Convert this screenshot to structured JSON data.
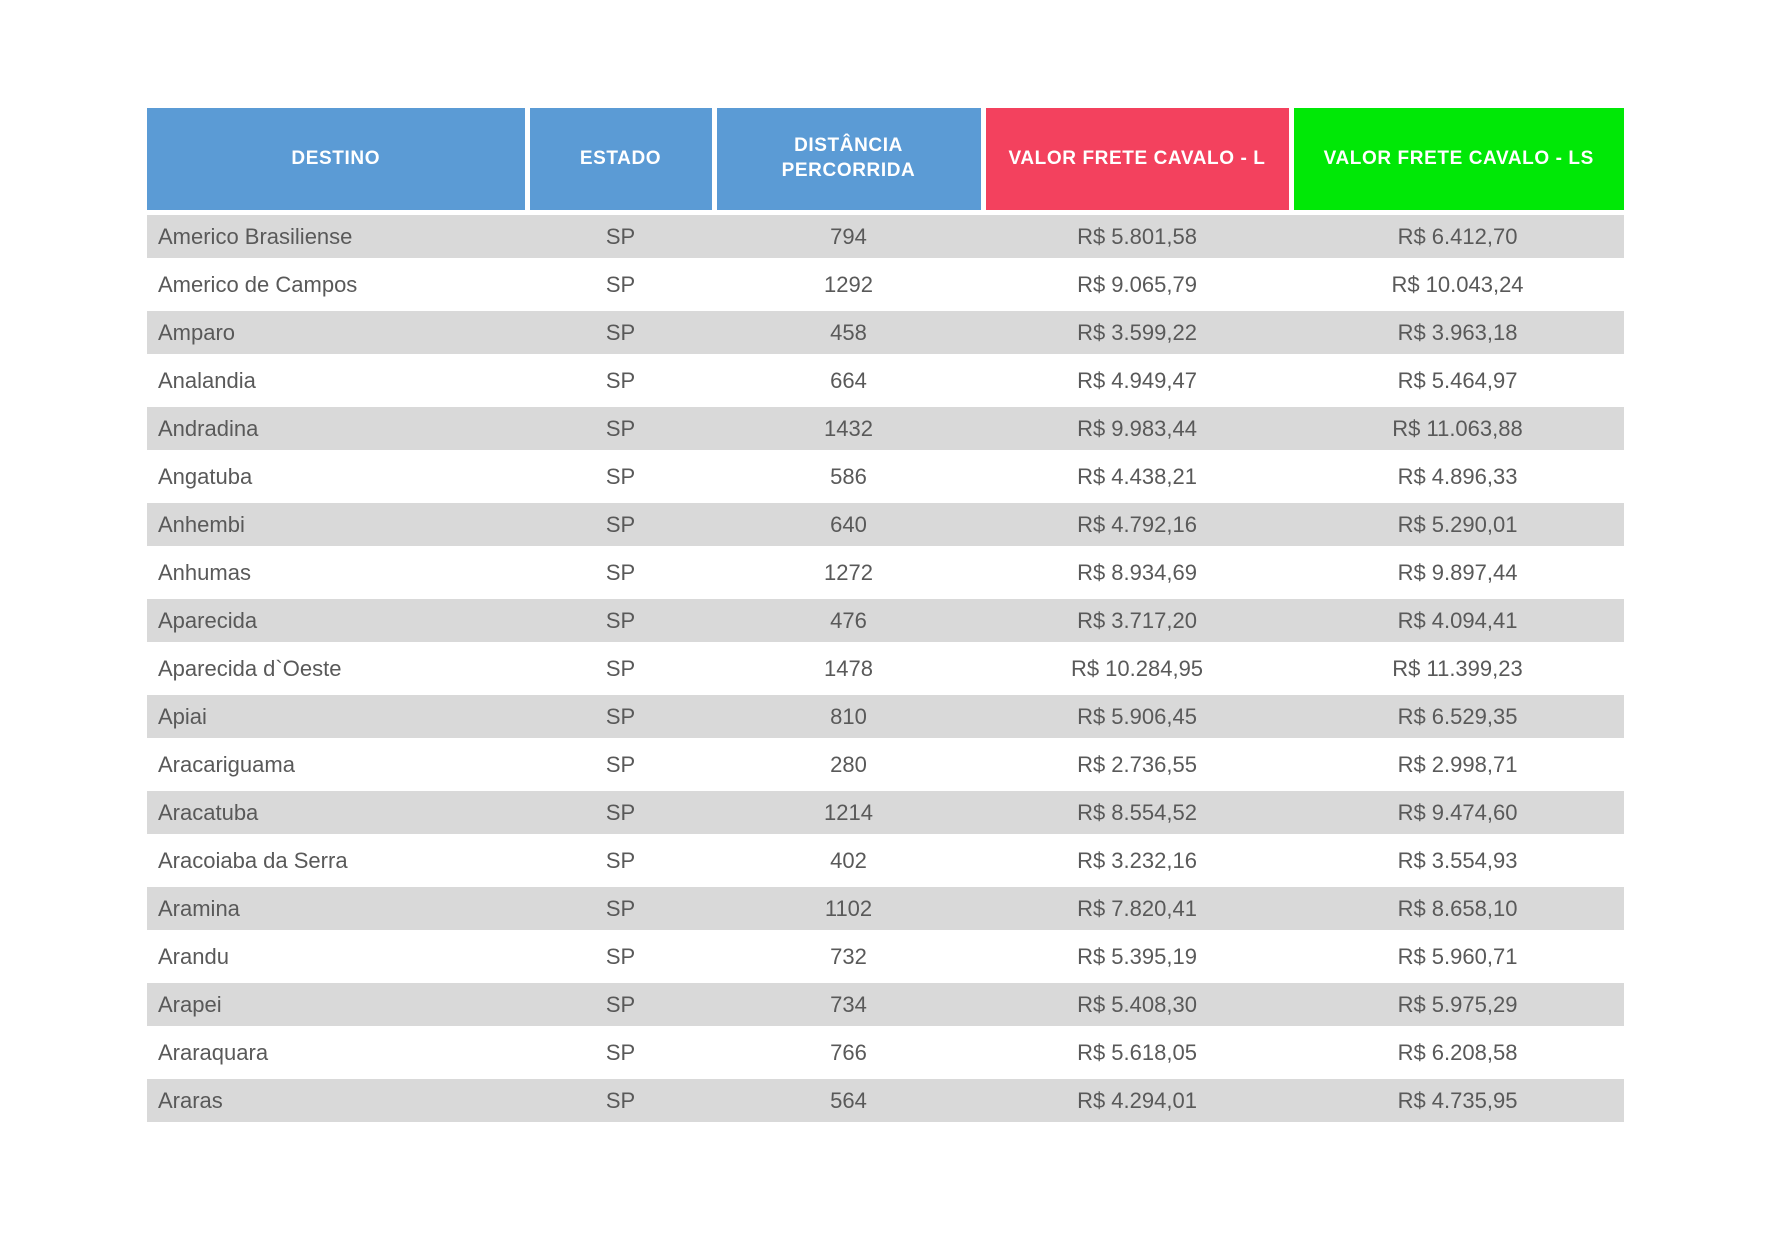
{
  "page": {
    "background": "#FFFFFF"
  },
  "colors": {
    "header_blue": "#5B9BD5",
    "header_red": "#F3415E",
    "header_green": "#00E806",
    "row_stripe_gray": "#D9D9D9",
    "row_white": "#FFFFFF",
    "body_text": "#595959",
    "header_text": "#FFFFFF"
  },
  "chart_data": {
    "type": "table",
    "title": "",
    "columns": [
      {
        "key": "destino",
        "label": "DESTINO",
        "color": "#5B9BD5"
      },
      {
        "key": "estado",
        "label": "ESTADO",
        "color": "#5B9BD5"
      },
      {
        "key": "distancia-percorrida",
        "label": "DISTÂNCIA PERCORRIDA",
        "color": "#5B9BD5"
      },
      {
        "key": "valor-frete-cavalo-l",
        "label": "VALOR FRETE CAVALO - L",
        "color": "#F3415E"
      },
      {
        "key": "valor-frete-cavalo-ls",
        "label": "VALOR FRETE CAVALO - LS",
        "color": "#00E806"
      }
    ],
    "rows": [
      [
        "Americo Brasiliense",
        "SP",
        794,
        "R$ 5.801,58",
        "R$ 6.412,70"
      ],
      [
        "Americo de Campos",
        "SP",
        1292,
        "R$ 9.065,79",
        "R$ 10.043,24"
      ],
      [
        "Amparo",
        "SP",
        458,
        "R$ 3.599,22",
        "R$ 3.963,18"
      ],
      [
        "Analandia",
        "SP",
        664,
        "R$ 4.949,47",
        "R$ 5.464,97"
      ],
      [
        "Andradina",
        "SP",
        1432,
        "R$ 9.983,44",
        "R$ 11.063,88"
      ],
      [
        "Angatuba",
        "SP",
        586,
        "R$ 4.438,21",
        "R$ 4.896,33"
      ],
      [
        "Anhembi",
        "SP",
        640,
        "R$ 4.792,16",
        "R$ 5.290,01"
      ],
      [
        "Anhumas",
        "SP",
        1272,
        "R$ 8.934,69",
        "R$ 9.897,44"
      ],
      [
        "Aparecida",
        "SP",
        476,
        "R$ 3.717,20",
        "R$ 4.094,41"
      ],
      [
        "Aparecida d`Oeste",
        "SP",
        1478,
        "R$ 10.284,95",
        "R$ 11.399,23"
      ],
      [
        "Apiai",
        "SP",
        810,
        "R$ 5.906,45",
        "R$ 6.529,35"
      ],
      [
        "Aracariguama",
        "SP",
        280,
        "R$ 2.736,55",
        "R$ 2.998,71"
      ],
      [
        "Aracatuba",
        "SP",
        1214,
        "R$ 8.554,52",
        "R$ 9.474,60"
      ],
      [
        "Aracoiaba da Serra",
        "SP",
        402,
        "R$ 3.232,16",
        "R$ 3.554,93"
      ],
      [
        "Aramina",
        "SP",
        1102,
        "R$ 7.820,41",
        "R$ 8.658,10"
      ],
      [
        "Arandu",
        "SP",
        732,
        "R$ 5.395,19",
        "R$ 5.960,71"
      ],
      [
        "Arapei",
        "SP",
        734,
        "R$ 5.408,30",
        "R$ 5.975,29"
      ],
      [
        "Araraquara",
        "SP",
        766,
        "R$ 5.618,05",
        "R$ 6.208,58"
      ],
      [
        "Araras",
        "SP",
        564,
        "R$ 4.294,01",
        "R$ 4.735,95"
      ]
    ],
    "layout": {
      "legend": "none",
      "grid": "row-stripes",
      "value_alignment": "center",
      "first_column_alignment": "left"
    }
  }
}
